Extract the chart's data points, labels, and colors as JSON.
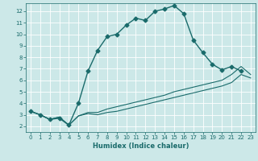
{
  "title": "",
  "xlabel": "Humidex (Indice chaleur)",
  "bg_color": "#cce8e8",
  "grid_color": "#ffffff",
  "line_color": "#1a6b6b",
  "xlim": [
    -0.5,
    23.5
  ],
  "ylim": [
    1.5,
    12.7
  ],
  "xticks": [
    0,
    1,
    2,
    3,
    4,
    5,
    6,
    7,
    8,
    9,
    10,
    11,
    12,
    13,
    14,
    15,
    16,
    17,
    18,
    19,
    20,
    21,
    22,
    23
  ],
  "yticks": [
    2,
    3,
    4,
    5,
    6,
    7,
    8,
    9,
    10,
    11,
    12
  ],
  "curve1_x": [
    0,
    1,
    2,
    3,
    4,
    5,
    6,
    7,
    8,
    9,
    10,
    11,
    12,
    13,
    14,
    15,
    16,
    17,
    18,
    19,
    20,
    21,
    22
  ],
  "curve1_y": [
    3.3,
    3.0,
    2.6,
    2.7,
    2.1,
    4.0,
    6.8,
    8.6,
    9.8,
    10.0,
    10.8,
    11.4,
    11.2,
    12.0,
    12.2,
    12.5,
    11.8,
    9.5,
    8.4,
    7.4,
    6.9,
    7.2,
    6.8
  ],
  "curve2_x": [
    0,
    1,
    2,
    3,
    4,
    5,
    6,
    7,
    8,
    9,
    10,
    11,
    12,
    13,
    14,
    15,
    16,
    17,
    18,
    19,
    20,
    21,
    22,
    23
  ],
  "curve2_y": [
    3.3,
    3.0,
    2.6,
    2.8,
    2.1,
    2.9,
    3.2,
    3.2,
    3.5,
    3.7,
    3.9,
    4.1,
    4.3,
    4.5,
    4.7,
    5.0,
    5.2,
    5.4,
    5.6,
    5.8,
    6.0,
    6.5,
    7.2,
    6.5
  ],
  "curve3_x": [
    0,
    1,
    2,
    3,
    4,
    5,
    6,
    7,
    8,
    9,
    10,
    11,
    12,
    13,
    14,
    15,
    16,
    17,
    18,
    19,
    20,
    21,
    22,
    23
  ],
  "curve3_y": [
    3.3,
    3.0,
    2.6,
    2.8,
    2.1,
    2.9,
    3.1,
    3.0,
    3.2,
    3.3,
    3.5,
    3.7,
    3.9,
    4.1,
    4.3,
    4.5,
    4.7,
    4.9,
    5.1,
    5.3,
    5.5,
    5.8,
    6.5,
    6.2
  ],
  "xlabel_fontsize": 6,
  "tick_fontsize": 5,
  "marker_size": 2.5,
  "linewidth1": 1.0,
  "linewidth2": 0.8
}
